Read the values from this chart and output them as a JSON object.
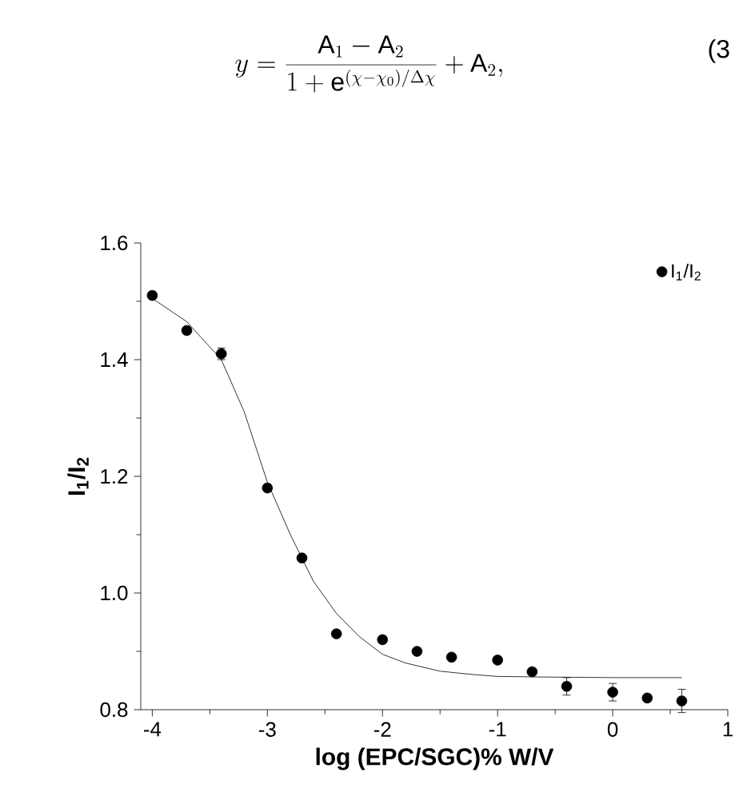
{
  "chart_data": {
    "type": "scatter",
    "xlabel": "log (EPC/SGC)% W/V",
    "ylabel": "I$_{1}$/I$_{2}$",
    "annotations": [
      "y = \\frac{\\mathrm{A}_1 - \\mathrm{A}_2}{1 + \\mathrm{e}^{(\\chi - \\chi_0)/\\Delta\\chi}} + \\mathrm{A}_2,",
      "(3"
    ],
    "xlim": [
      -4.1,
      1
    ],
    "ylim": [
      0.8,
      1.6
    ],
    "xticks": [
      -4,
      -3,
      -2,
      -1,
      0,
      1
    ],
    "yticks": [
      {
        "value": 0.8,
        "label": "0.8"
      },
      {
        "value": 1.0,
        "label": "1.0"
      },
      {
        "value": 1.2,
        "label": "1.2"
      },
      {
        "value": 1.4,
        "label": "1.4"
      },
      {
        "value": 1.6,
        "label": "1.6"
      }
    ],
    "legend": "top right",
    "marker": "circle",
    "grid": false,
    "series": [
      {
        "name": "I$_{1}$/I$_{2}$",
        "color": "#000000",
        "x": [
          -4,
          -3.7,
          -3.4,
          -3,
          -2.7,
          -2.4,
          -2,
          -1.7,
          -1.4,
          -1,
          -0.7,
          -0.4,
          0,
          0.3,
          0.6
        ],
        "values": [
          1.51,
          1.45,
          1.41,
          1.18,
          1.06,
          0.93,
          0.92,
          0.9,
          0.89,
          0.885,
          0.865,
          0.84,
          0.83,
          0.82,
          0.815
        ],
        "errors": [
          null,
          null,
          0.01,
          null,
          null,
          null,
          null,
          null,
          null,
          null,
          null,
          0.015,
          0.015,
          null,
          0.02
        ]
      },
      {
        "type": "line",
        "color": "#000000",
        "marker": "none",
        "x": [
          -4,
          -3.7,
          -3.4,
          -3.2,
          -3,
          -2.8,
          -2.7,
          -2.6,
          -2.4,
          -2.2,
          -2,
          -1.8,
          -1.5,
          -1.2,
          -1,
          -0.6,
          0,
          0.6
        ],
        "values": [
          1.505,
          1.465,
          1.4,
          1.31,
          1.19,
          1.1,
          1.06,
          1.02,
          0.965,
          0.925,
          0.895,
          0.88,
          0.866,
          0.86,
          0.857,
          0.856,
          0.855,
          0.855
        ]
      }
    ]
  }
}
